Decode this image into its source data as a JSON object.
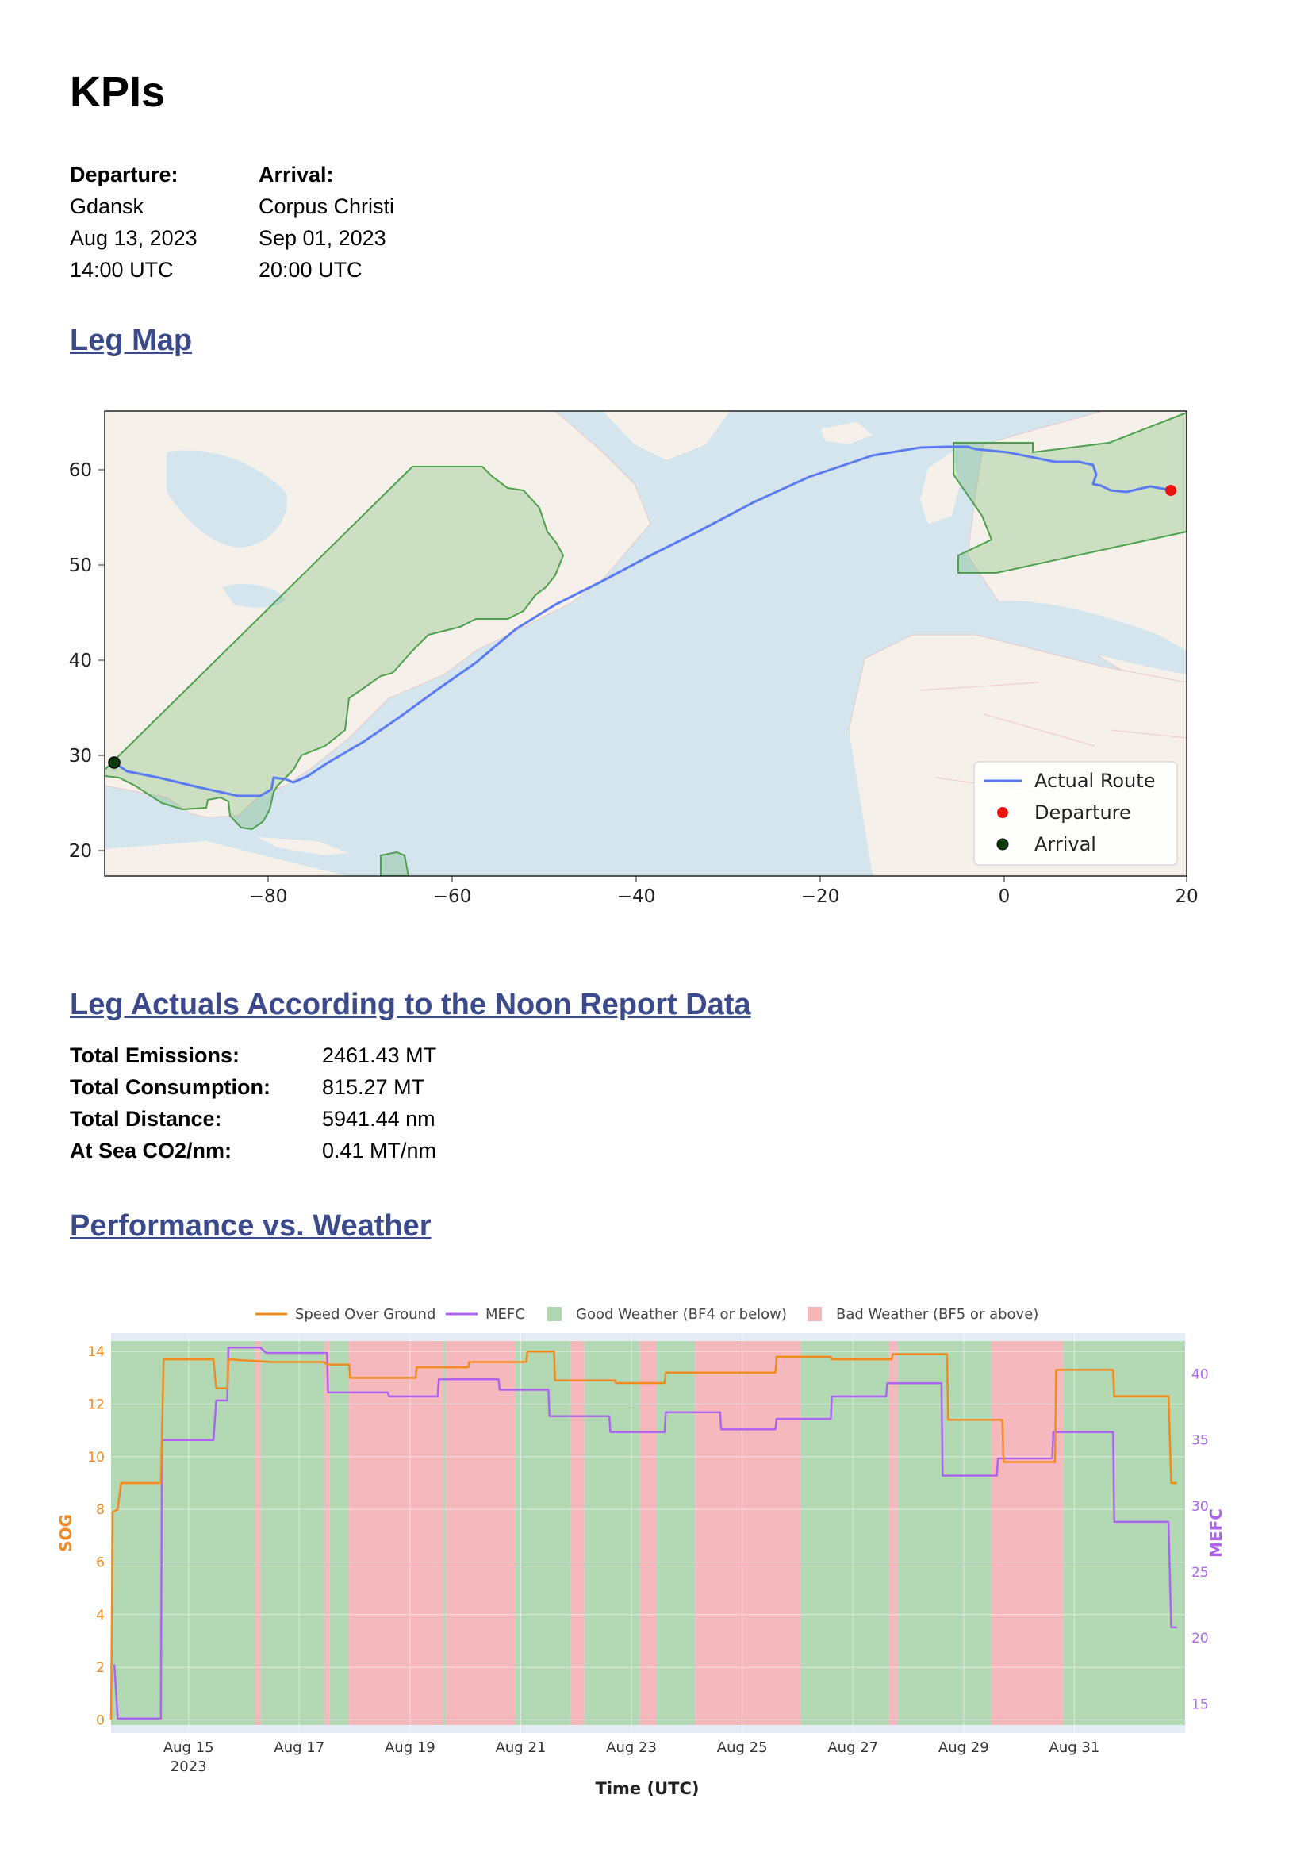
{
  "page_title": "KPIs",
  "trip": {
    "departure": {
      "label": "Departure:",
      "port": "Gdansk",
      "date": "Aug 13, 2023",
      "time": "14:00 UTC"
    },
    "arrival": {
      "label": "Arrival:",
      "port": "Corpus Christi",
      "date": "Sep 01, 2023",
      "time": "20:00 UTC"
    }
  },
  "sections": {
    "leg_map": "Leg Map",
    "leg_actuals": "Leg Actuals According to the Noon Report Data",
    "performance": "Performance vs. Weather"
  },
  "map": {
    "x_ticks": [
      "−80",
      "−60",
      "−40",
      "−20",
      "0",
      "20"
    ],
    "y_ticks": [
      "60",
      "50",
      "40",
      "30",
      "20"
    ],
    "legend": {
      "route": "Actual Route",
      "departure": "Departure",
      "arrival": "Arrival"
    },
    "route_color": "#5b7cf0",
    "departure_color": "#ee1111",
    "arrival_color": "#0b3d0b"
  },
  "kpis": [
    {
      "label": "Total Emissions:",
      "value": "2461.43 MT"
    },
    {
      "label": "Total Consumption:",
      "value": "815.27 MT"
    },
    {
      "label": "Total Distance:",
      "value": "5941.44 nm"
    },
    {
      "label": "At Sea CO2/nm:",
      "value": "0.41 MT/nm"
    }
  ],
  "chart_data": {
    "type": "line",
    "legend": {
      "sog": "Speed Over Ground",
      "mefc": "MEFC",
      "good": "Good Weather (BF4 or below)",
      "bad": "Bad Weather (BF5 or above)"
    },
    "xlabel": "Time (UTC)",
    "ylabel_left": "SOG",
    "ylabel_right": "MEFC",
    "x_tick_labels": [
      "Aug 15",
      "Aug 17",
      "Aug 19",
      "Aug 21",
      "Aug 23",
      "Aug 25",
      "Aug 27",
      "Aug 29",
      "Aug 31"
    ],
    "x_year_label": "2023",
    "x_ticks_days": [
      15,
      17,
      19,
      21,
      23,
      25,
      27,
      29,
      31
    ],
    "xlim_days": [
      13.6,
      33.0
    ],
    "ylim_left": [
      -0.5,
      14.7
    ],
    "ylim_right": [
      12.8,
      43.1
    ],
    "y_ticks_left": [
      0,
      2,
      4,
      6,
      8,
      10,
      12,
      14
    ],
    "y_ticks_right": [
      15,
      20,
      25,
      30,
      35,
      40
    ],
    "colors": {
      "sog": "#f28a1e",
      "mefc": "#ae64f0",
      "good": "#b0d8b0",
      "bad": "#f5b6b9"
    },
    "weather": [
      {
        "start": 13.6,
        "end": 16.2,
        "cond": "good"
      },
      {
        "start": 16.2,
        "end": 16.3,
        "cond": "bad"
      },
      {
        "start": 16.3,
        "end": 17.45,
        "cond": "good"
      },
      {
        "start": 17.45,
        "end": 17.55,
        "cond": "bad"
      },
      {
        "start": 17.55,
        "end": 17.9,
        "cond": "good"
      },
      {
        "start": 17.9,
        "end": 19.6,
        "cond": "bad"
      },
      {
        "start": 19.6,
        "end": 19.65,
        "cond": "good"
      },
      {
        "start": 19.65,
        "end": 20.9,
        "cond": "bad"
      },
      {
        "start": 20.9,
        "end": 21.9,
        "cond": "good"
      },
      {
        "start": 21.9,
        "end": 22.15,
        "cond": "bad"
      },
      {
        "start": 22.15,
        "end": 23.15,
        "cond": "good"
      },
      {
        "start": 23.15,
        "end": 23.45,
        "cond": "bad"
      },
      {
        "start": 23.45,
        "end": 24.15,
        "cond": "good"
      },
      {
        "start": 24.15,
        "end": 26.05,
        "cond": "bad"
      },
      {
        "start": 26.05,
        "end": 27.65,
        "cond": "good"
      },
      {
        "start": 27.65,
        "end": 27.8,
        "cond": "bad"
      },
      {
        "start": 27.8,
        "end": 29.5,
        "cond": "good"
      },
      {
        "start": 29.5,
        "end": 30.8,
        "cond": "bad"
      },
      {
        "start": 30.8,
        "end": 33.0,
        "cond": "good"
      }
    ],
    "sog": [
      [
        13.6,
        0
      ],
      [
        13.63,
        7.9
      ],
      [
        13.72,
        8
      ],
      [
        13.78,
        9
      ],
      [
        14.5,
        9
      ],
      [
        14.55,
        13.7
      ],
      [
        15.45,
        13.7
      ],
      [
        15.5,
        12.6
      ],
      [
        15.7,
        12.6
      ],
      [
        15.72,
        13.7
      ],
      [
        16.5,
        13.6
      ],
      [
        17.45,
        13.6
      ],
      [
        17.5,
        13.5
      ],
      [
        17.9,
        13.5
      ],
      [
        17.92,
        13.0
      ],
      [
        19.1,
        13.0
      ],
      [
        19.12,
        13.4
      ],
      [
        20.05,
        13.4
      ],
      [
        20.07,
        13.6
      ],
      [
        21.1,
        13.6
      ],
      [
        21.12,
        14.0
      ],
      [
        21.6,
        14.0
      ],
      [
        21.62,
        12.9
      ],
      [
        22.7,
        12.9
      ],
      [
        22.72,
        12.8
      ],
      [
        23.6,
        12.8
      ],
      [
        23.62,
        13.2
      ],
      [
        25.6,
        13.2
      ],
      [
        25.62,
        13.8
      ],
      [
        26.6,
        13.8
      ],
      [
        26.62,
        13.7
      ],
      [
        27.7,
        13.7
      ],
      [
        27.72,
        13.9
      ],
      [
        28.7,
        13.9
      ],
      [
        28.72,
        11.4
      ],
      [
        29.7,
        11.4
      ],
      [
        29.72,
        9.8
      ],
      [
        30.65,
        9.8
      ],
      [
        30.67,
        13.3
      ],
      [
        31.7,
        13.3
      ],
      [
        31.72,
        12.3
      ],
      [
        32.7,
        12.3
      ],
      [
        32.75,
        9.0
      ],
      [
        32.85,
        9.0
      ]
    ],
    "mefc": [
      [
        13.66,
        18.0
      ],
      [
        13.72,
        13.9
      ],
      [
        14.5,
        13.9
      ],
      [
        14.52,
        35.0
      ],
      [
        15.45,
        35.0
      ],
      [
        15.5,
        38.0
      ],
      [
        15.7,
        38.0
      ],
      [
        15.72,
        42.0
      ],
      [
        16.3,
        42.0
      ],
      [
        16.4,
        41.6
      ],
      [
        17.5,
        41.6
      ],
      [
        17.52,
        38.6
      ],
      [
        18.6,
        38.6
      ],
      [
        18.62,
        38.3
      ],
      [
        19.5,
        38.3
      ],
      [
        19.52,
        39.6
      ],
      [
        20.6,
        39.6
      ],
      [
        20.62,
        38.8
      ],
      [
        21.5,
        38.8
      ],
      [
        21.52,
        36.8
      ],
      [
        22.6,
        36.8
      ],
      [
        22.62,
        35.6
      ],
      [
        23.6,
        35.6
      ],
      [
        23.62,
        37.1
      ],
      [
        24.6,
        37.1
      ],
      [
        24.62,
        35.8
      ],
      [
        25.6,
        35.8
      ],
      [
        25.62,
        36.6
      ],
      [
        26.6,
        36.6
      ],
      [
        26.62,
        38.3
      ],
      [
        27.6,
        38.3
      ],
      [
        27.62,
        39.3
      ],
      [
        28.6,
        39.3
      ],
      [
        28.62,
        32.3
      ],
      [
        29.6,
        32.3
      ],
      [
        29.62,
        33.6
      ],
      [
        30.6,
        33.6
      ],
      [
        30.62,
        35.6
      ],
      [
        31.7,
        35.6
      ],
      [
        31.72,
        28.8
      ],
      [
        32.7,
        28.8
      ],
      [
        32.75,
        20.8
      ],
      [
        32.85,
        20.8
      ]
    ]
  }
}
